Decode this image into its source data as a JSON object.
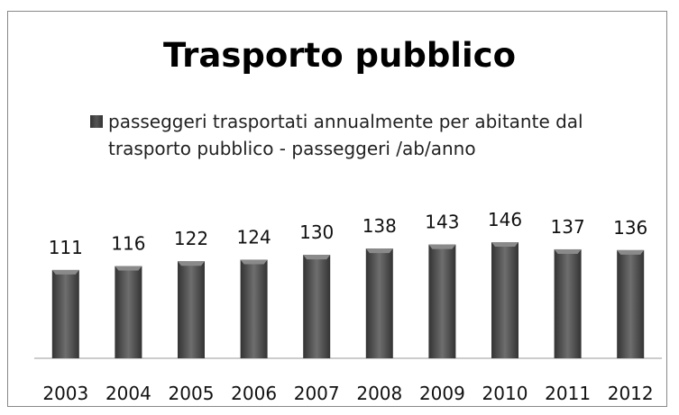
{
  "chart_data": {
    "type": "bar",
    "title": "Trasporto pubblico",
    "legend": "passeggeri trasportati annualmente per abitante dal trasporto pubblico - passeggeri /ab/anno",
    "categories": [
      "2003",
      "2004",
      "2005",
      "2006",
      "2007",
      "2008",
      "2009",
      "2010",
      "2011",
      "2012"
    ],
    "values": [
      111,
      116,
      122,
      124,
      130,
      138,
      143,
      146,
      137,
      136
    ],
    "color": "#555555"
  }
}
